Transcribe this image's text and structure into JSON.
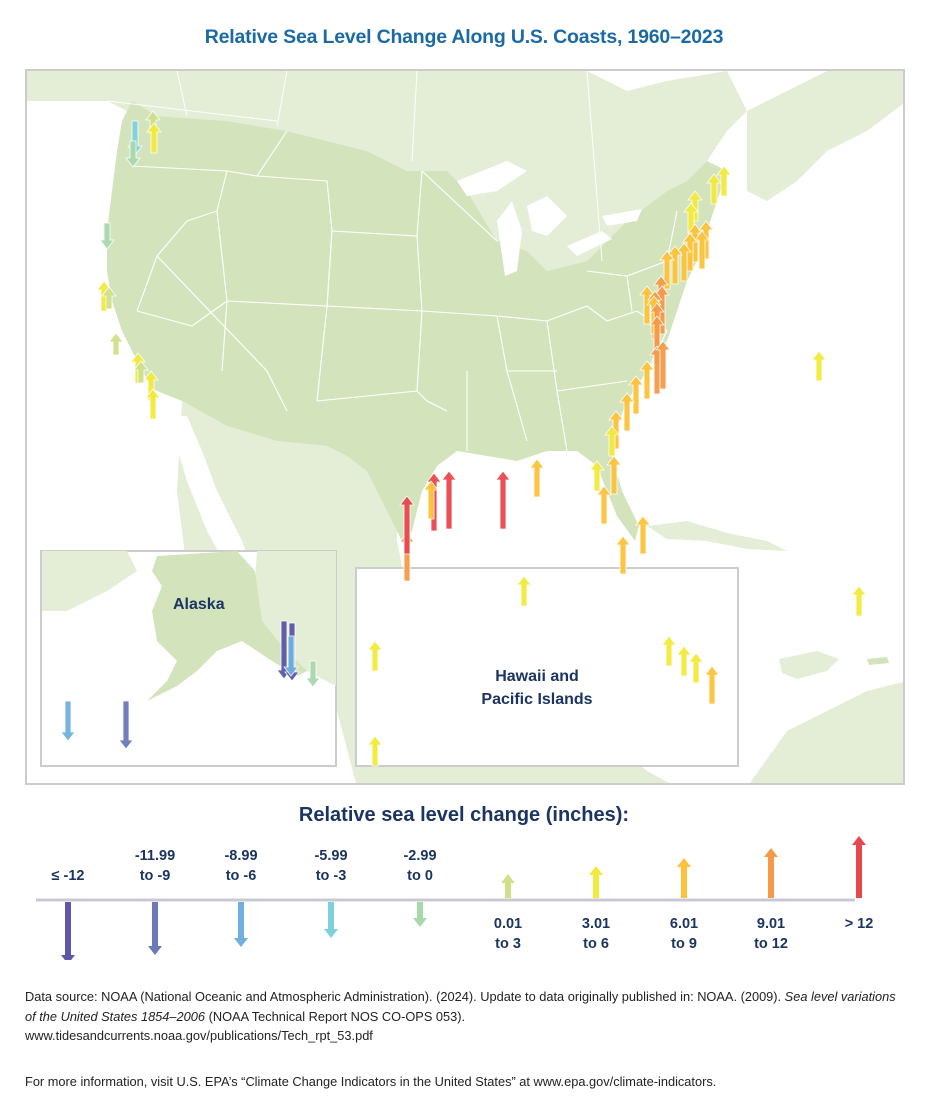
{
  "title": "Relative Sea Level Change Along U.S. Coasts, 1960–2023",
  "map": {
    "inset_alaska_label": "Alaska",
    "inset_hawaii_label": "Hawaii and\nPacific Islands",
    "colors": {
      "us_land": "#d3e4bd",
      "other_land": "#e4eed7",
      "water": "#ffffff",
      "borders": "#ffffff",
      "frame": "#cccccc"
    }
  },
  "legend": {
    "title": "Relative sea level change (inches):",
    "categories": [
      {
        "id": "le-12",
        "label": "≤ -12",
        "direction": "down",
        "color": "#5e57a8"
      },
      {
        "id": "-12to-9",
        "label": "-11.99\nto -9",
        "direction": "down",
        "color": "#6b79bb"
      },
      {
        "id": "-9to-6",
        "label": "-8.99\nto -6",
        "direction": "down",
        "color": "#6fb0df"
      },
      {
        "id": "-6to-3",
        "label": "-5.99\nto -3",
        "direction": "down",
        "color": "#7fd0df"
      },
      {
        "id": "-3to0",
        "label": "-2.99\nto 0",
        "direction": "down",
        "color": "#a9d8ae"
      },
      {
        "id": "0to3",
        "label": "0.01\nto 3",
        "direction": "up",
        "color": "#cfe08a"
      },
      {
        "id": "3to6",
        "label": "3.01\nto 6",
        "direction": "up",
        "color": "#f2ea3a"
      },
      {
        "id": "6to9",
        "label": "6.01\nto 9",
        "direction": "up",
        "color": "#fcc33a"
      },
      {
        "id": "9to12",
        "label": "9.01\nto 12",
        "direction": "up",
        "color": "#f59a48"
      },
      {
        "id": "gt12",
        "label": "> 12",
        "direction": "up",
        "color": "#e9474e"
      }
    ]
  },
  "stations": [
    {
      "region": "Washington - Strait of Juan de Fuca",
      "category": 3
    },
    {
      "region": "Washington - Puget Sound north",
      "category": 5
    },
    {
      "region": "Washington - Seattle",
      "category": 6
    },
    {
      "region": "Washington coast",
      "category": 4
    },
    {
      "region": "Northern California - Crescent City",
      "category": 4
    },
    {
      "region": "California - Point Reyes",
      "category": 6
    },
    {
      "region": "California - San Francisco",
      "category": 5
    },
    {
      "region": "California - Monterey",
      "category": 5
    },
    {
      "region": "California - Santa Barbara",
      "category": 6
    },
    {
      "region": "California - Los Angeles",
      "category": 5
    },
    {
      "region": "California - La Jolla",
      "category": 6
    },
    {
      "region": "California - San Diego",
      "category": 6
    },
    {
      "region": "Maine - Eastport",
      "category": 6
    },
    {
      "region": "Maine - Bar Harbor",
      "category": 6
    },
    {
      "region": "Maine - Portland",
      "category": 6
    },
    {
      "region": "New Hampshire - Seavey Island",
      "category": 6
    },
    {
      "region": "Massachusetts - Boston",
      "category": 7
    },
    {
      "region": "Massachusetts - Woods Hole",
      "category": 7
    },
    {
      "region": "Massachusetts - Nantucket",
      "category": 7
    },
    {
      "region": "Rhode Island - Newport",
      "category": 7
    },
    {
      "region": "Connecticut - New London",
      "category": 7
    },
    {
      "region": "New York - Montauk",
      "category": 7
    },
    {
      "region": "New York - The Battery",
      "category": 7
    },
    {
      "region": "New Jersey - Sandy Hook",
      "category": 8
    },
    {
      "region": "New Jersey - Atlantic City",
      "category": 8
    },
    {
      "region": "Pennsylvania - Philadelphia",
      "category": 7
    },
    {
      "region": "Delaware - Lewes",
      "category": 8
    },
    {
      "region": "Maryland - Baltimore",
      "category": 7
    },
    {
      "region": "Maryland - Annapolis",
      "category": 8
    },
    {
      "region": "Maryland - Solomons Island",
      "category": 8
    },
    {
      "region": "Virginia - Sewells Point",
      "category": 8
    },
    {
      "region": "Virginia - Kiptopeke",
      "category": 8
    },
    {
      "region": "North Carolina - Duck",
      "category": 7
    },
    {
      "region": "North Carolina - Wilmington",
      "category": 7
    },
    {
      "region": "South Carolina - Charleston",
      "category": 7
    },
    {
      "region": "Georgia - Fort Pulaski",
      "category": 7
    },
    {
      "region": "Florida - Fernandina Beach",
      "category": 6
    },
    {
      "region": "Florida - Mayport",
      "category": 7
    },
    {
      "region": "Bermuda",
      "category": 6
    },
    {
      "region": "Texas - Port Isabel",
      "category": 8
    },
    {
      "region": "Texas - Corpus Christi",
      "category": 9
    },
    {
      "region": "Texas - Freeport",
      "category": 9
    },
    {
      "region": "Texas - Galveston Pier",
      "category": 7
    },
    {
      "region": "Texas - Galveston Pleasure Pier",
      "category": 9
    },
    {
      "region": "Louisiana - Grand Isle",
      "category": 9
    },
    {
      "region": "Florida - Pensacola",
      "category": 7
    },
    {
      "region": "Florida - Cedar Key",
      "category": 6
    },
    {
      "region": "Florida - St. Petersburg",
      "category": 7
    },
    {
      "region": "Florida - Key West",
      "category": 7
    },
    {
      "region": "Florida - Miami area",
      "category": 7
    },
    {
      "region": "Puerto Rico - San Juan",
      "category": 6
    },
    {
      "region": "Alaska - Adak",
      "category": 2
    },
    {
      "region": "Alaska - Unalaska",
      "category": 1
    },
    {
      "region": "Alaska - Yakutat",
      "category": 0
    },
    {
      "region": "Alaska - Skagway",
      "category": 0
    },
    {
      "region": "Alaska - Juneau",
      "category": 2
    },
    {
      "region": "Alaska - Ketchikan",
      "category": 4
    },
    {
      "region": "Hawaii - Midway",
      "category": 6
    },
    {
      "region": "Pacific - Wake Island",
      "category": 6
    },
    {
      "region": "Pacific - Kwajalein",
      "category": 6
    },
    {
      "region": "Hawaii - Nawiliwili",
      "category": 6
    },
    {
      "region": "Hawaii - Honolulu",
      "category": 6
    },
    {
      "region": "Hawaii - Kahului",
      "category": 6
    },
    {
      "region": "Hawaii - Hilo",
      "category": 7
    }
  ],
  "footer": {
    "source_prefix": "Data source: NOAA (National Oceanic and Atmospheric Administration). (2024). Update to data originally published in: NOAA. (2009). ",
    "source_title": "Sea level variations of the United States 1854–2006",
    "source_suffix": " (NOAA Technical Report NOS CO-OPS 053).",
    "source_url": "www.tidesandcurrents.noaa.gov/publications/Tech_rpt_53.pdf",
    "more_info": "For more information, visit U.S. EPA’s “Climate Change Indicators in the United States” at www.epa.gov/climate-indicators."
  }
}
